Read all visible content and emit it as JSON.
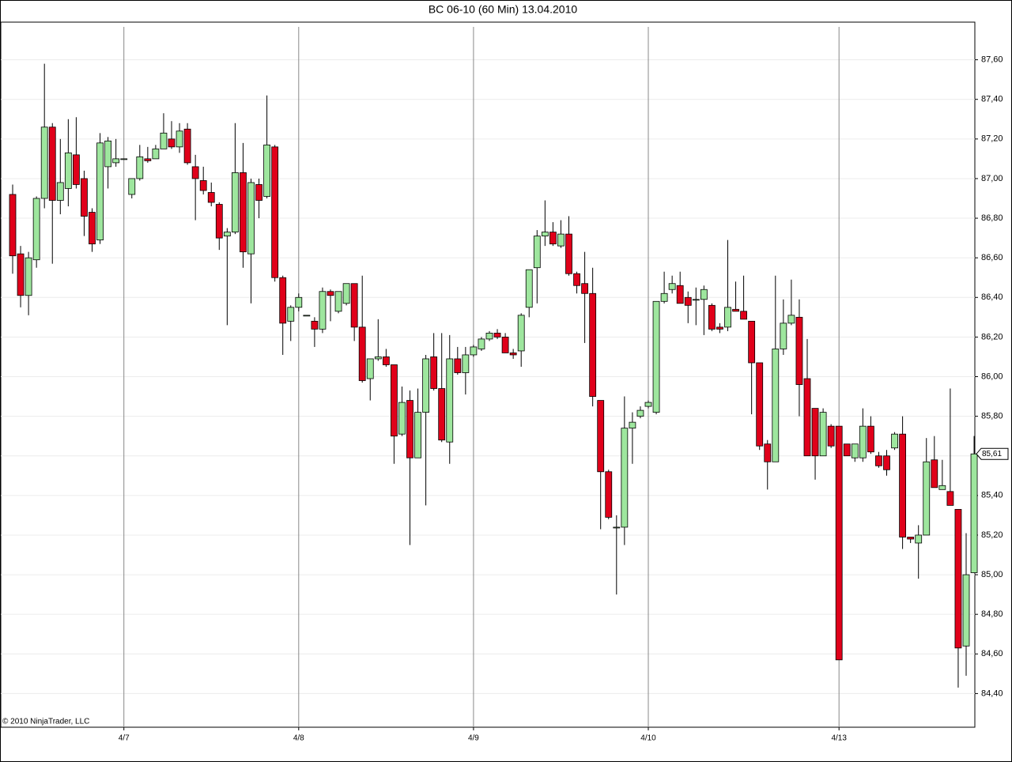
{
  "chart_data": {
    "type": "candlestick",
    "title": "BC 06-10 (60 Min)  13.04.2010",
    "annotation": "© 2010 NinjaTrader, LLC",
    "up_color": "#9ee69e",
    "down_color": "#e0001a",
    "grid": true,
    "ylim": [
      84.23,
      87.79
    ],
    "yticks": [
      {
        "value": 84.4,
        "label": "84,40"
      },
      {
        "value": 84.6,
        "label": "84,60"
      },
      {
        "value": 84.8,
        "label": "84,80"
      },
      {
        "value": 85.0,
        "label": "85,00"
      },
      {
        "value": 85.2,
        "label": "85,20"
      },
      {
        "value": 85.4,
        "label": "85,40"
      },
      {
        "value": 85.6,
        "label": "85,60"
      },
      {
        "value": 85.8,
        "label": "85,80"
      },
      {
        "value": 86.0,
        "label": "86,00"
      },
      {
        "value": 86.2,
        "label": "86,20"
      },
      {
        "value": 86.4,
        "label": "86,40"
      },
      {
        "value": 86.6,
        "label": "86,60"
      },
      {
        "value": 86.8,
        "label": "86,80"
      },
      {
        "value": 87.0,
        "label": "87,00"
      },
      {
        "value": 87.2,
        "label": "87,20"
      },
      {
        "value": 87.4,
        "label": "87,40"
      },
      {
        "value": 87.6,
        "label": "87,60"
      }
    ],
    "last_price": {
      "value": 85.61,
      "label": "85,61"
    },
    "categories": [
      null,
      null,
      null,
      null,
      null,
      null,
      null,
      null,
      null,
      null,
      null,
      null,
      null,
      null,
      "4/7",
      null,
      null,
      null,
      null,
      null,
      null,
      null,
      null,
      null,
      null,
      null,
      null,
      null,
      null,
      null,
      null,
      null,
      null,
      null,
      null,
      null,
      "4/8",
      null,
      null,
      null,
      null,
      null,
      null,
      null,
      null,
      null,
      null,
      null,
      null,
      null,
      null,
      null,
      null,
      null,
      null,
      null,
      null,
      null,
      "4/9",
      null,
      null,
      null,
      null,
      null,
      null,
      null,
      null,
      null,
      null,
      null,
      null,
      null,
      null,
      null,
      null,
      null,
      null,
      null,
      null,
      null,
      "4/10",
      null,
      null,
      null,
      null,
      null,
      null,
      null,
      null,
      null,
      null,
      null,
      null,
      null,
      null,
      null,
      null,
      null,
      null,
      null,
      null,
      null,
      null,
      null,
      "4/13",
      null,
      null,
      null,
      null,
      null,
      null,
      null,
      null,
      null,
      null,
      null,
      null,
      null,
      null,
      null,
      null,
      null
    ],
    "open": [
      86.92,
      86.62,
      86.41,
      86.59,
      86.9,
      87.26,
      86.89,
      86.95,
      87.12,
      87.0,
      86.83,
      86.69,
      87.06,
      87.08,
      87.1,
      86.92,
      87.0,
      87.1,
      87.1,
      87.15,
      87.2,
      87.16,
      87.25,
      87.06,
      86.99,
      86.93,
      86.87,
      86.71,
      86.73,
      87.03,
      86.62,
      86.97,
      86.91,
      87.16,
      86.5,
      86.28,
      86.35,
      86.31,
      86.28,
      86.24,
      86.43,
      86.33,
      86.37,
      86.47,
      86.25,
      85.99,
      86.09,
      86.1,
      86.06,
      85.71,
      85.88,
      85.59,
      85.82,
      86.1,
      85.94,
      85.67,
      86.09,
      86.02,
      86.11,
      86.14,
      86.19,
      86.22,
      86.2,
      86.12,
      86.13,
      86.35,
      86.55,
      86.71,
      86.73,
      86.66,
      86.72,
      86.52,
      86.47,
      86.42,
      85.88,
      85.52,
      85.24,
      85.24,
      85.74,
      85.8,
      85.85,
      85.82,
      86.38,
      86.44,
      86.46,
      86.4,
      86.39,
      86.39,
      86.36,
      86.25,
      86.25,
      86.34,
      86.33,
      86.28,
      86.07,
      85.66,
      85.57,
      86.14,
      86.27,
      86.3,
      85.99,
      85.84,
      85.6,
      85.75,
      85.75,
      85.66,
      85.59,
      85.59,
      85.75,
      85.6,
      85.6,
      85.64,
      85.71,
      85.19,
      85.16,
      85.2,
      85.58,
      85.43,
      85.42,
      85.33,
      84.64,
      85.01
    ],
    "high": [
      86.97,
      86.66,
      86.63,
      86.91,
      87.58,
      87.28,
      87.2,
      87.3,
      87.31,
      87.04,
      86.85,
      87.23,
      87.21,
      87.2,
      87.1,
      87.0,
      87.17,
      87.16,
      87.17,
      87.33,
      87.29,
      87.28,
      87.28,
      87.12,
      87.06,
      86.98,
      86.88,
      86.75,
      87.28,
      87.18,
      87.0,
      87.0,
      87.42,
      87.17,
      86.51,
      86.36,
      86.42,
      86.31,
      86.3,
      86.45,
      86.44,
      86.43,
      86.47,
      86.47,
      86.51,
      86.09,
      86.29,
      86.14,
      86.06,
      85.95,
      85.93,
      85.94,
      86.11,
      86.22,
      86.22,
      86.21,
      86.15,
      86.15,
      86.16,
      86.2,
      86.23,
      86.24,
      86.22,
      86.14,
      86.32,
      86.54,
      86.74,
      86.89,
      86.78,
      86.79,
      86.81,
      86.53,
      86.63,
      86.55,
      85.88,
      85.53,
      85.3,
      85.9,
      85.82,
      85.85,
      85.88,
      86.38,
      86.53,
      86.51,
      86.53,
      86.43,
      86.45,
      86.46,
      86.37,
      86.27,
      86.69,
      86.48,
      86.51,
      86.28,
      86.07,
      85.68,
      86.51,
      86.39,
      86.49,
      86.39,
      86.19,
      85.84,
      85.84,
      85.76,
      85.75,
      85.66,
      85.66,
      85.84,
      85.8,
      85.62,
      85.63,
      85.72,
      85.8,
      85.19,
      85.25,
      85.69,
      85.7,
      85.58,
      85.94,
      85.33,
      85.21,
      85.7
    ],
    "low": [
      86.52,
      86.35,
      86.31,
      86.55,
      86.85,
      86.57,
      86.82,
      86.86,
      86.95,
      86.71,
      86.63,
      86.67,
      86.95,
      87.06,
      87.1,
      86.9,
      86.99,
      87.08,
      87.1,
      87.15,
      87.15,
      87.13,
      87.07,
      86.79,
      86.92,
      86.86,
      86.64,
      86.26,
      86.72,
      86.55,
      86.37,
      86.8,
      86.9,
      86.48,
      86.11,
      86.18,
      86.33,
      86.31,
      86.15,
      86.22,
      86.28,
      86.32,
      86.36,
      86.18,
      85.97,
      85.88,
      86.08,
      86.05,
      85.56,
      85.7,
      85.15,
      85.59,
      85.35,
      85.93,
      85.67,
      85.56,
      86.01,
      85.91,
      86.1,
      86.13,
      86.18,
      86.19,
      86.12,
      86.09,
      86.05,
      86.3,
      86.37,
      86.66,
      86.66,
      86.65,
      86.51,
      86.42,
      86.17,
      85.85,
      85.23,
      85.28,
      84.9,
      85.15,
      85.56,
      85.79,
      85.84,
      85.81,
      86.37,
      86.42,
      86.37,
      86.27,
      86.26,
      86.21,
      86.23,
      86.22,
      86.23,
      86.33,
      86.29,
      85.81,
      85.63,
      85.43,
      85.57,
      86.11,
      86.26,
      85.8,
      85.6,
      85.48,
      85.6,
      85.64,
      84.57,
      85.6,
      85.57,
      85.57,
      85.61,
      85.54,
      85.5,
      85.63,
      85.13,
      85.16,
      84.98,
      85.2,
      85.44,
      85.43,
      85.35,
      84.43,
      84.49,
      85.01
    ],
    "close": [
      86.61,
      86.41,
      86.6,
      86.9,
      87.26,
      86.89,
      86.98,
      87.13,
      86.97,
      86.81,
      86.67,
      87.18,
      87.19,
      87.1,
      87.1,
      87.0,
      87.11,
      87.09,
      87.15,
      87.23,
      87.16,
      87.24,
      87.08,
      87.0,
      86.94,
      86.88,
      86.7,
      86.73,
      87.03,
      86.63,
      86.98,
      86.89,
      87.17,
      86.5,
      86.27,
      86.35,
      86.4,
      86.31,
      86.24,
      86.43,
      86.41,
      86.43,
      86.47,
      86.25,
      85.98,
      86.09,
      86.1,
      86.06,
      85.7,
      85.87,
      85.59,
      85.82,
      86.09,
      85.94,
      85.68,
      86.09,
      86.02,
      86.11,
      86.15,
      86.19,
      86.22,
      86.2,
      86.12,
      86.11,
      86.31,
      86.54,
      86.71,
      86.73,
      86.67,
      86.72,
      86.52,
      86.46,
      86.42,
      85.9,
      85.52,
      85.29,
      85.24,
      85.74,
      85.77,
      85.83,
      85.87,
      86.38,
      86.42,
      86.47,
      86.37,
      86.36,
      86.39,
      86.44,
      86.24,
      86.24,
      86.35,
      86.33,
      86.29,
      86.07,
      85.65,
      85.57,
      86.14,
      86.27,
      86.31,
      85.96,
      85.6,
      85.6,
      85.82,
      85.65,
      84.57,
      85.6,
      85.66,
      85.75,
      85.62,
      85.55,
      85.53,
      85.71,
      85.19,
      85.18,
      85.2,
      85.57,
      85.44,
      85.45,
      85.35,
      84.63,
      85.0,
      85.61
    ]
  }
}
